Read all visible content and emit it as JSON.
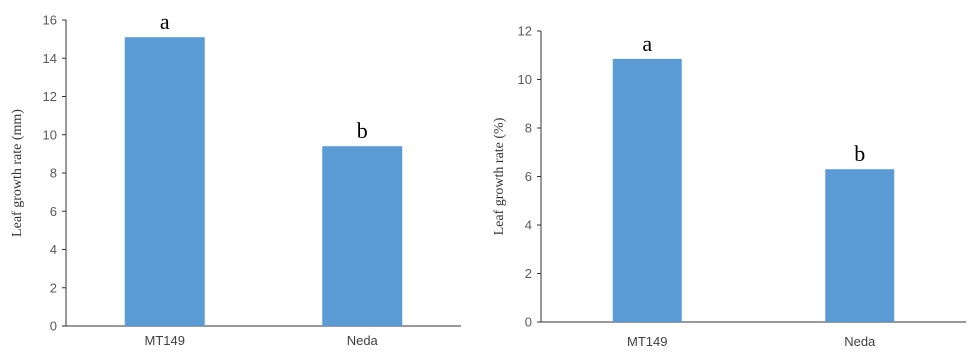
{
  "chart_data": [
    {
      "type": "bar",
      "categories": [
        "MT149",
        "Neda"
      ],
      "values": [
        15.1,
        9.4
      ],
      "annotations": [
        "a",
        "b"
      ],
      "xlabel": "",
      "ylabel": "Leaf growth rate (mm)",
      "ylim": [
        0,
        16
      ],
      "yticks": [
        0,
        2,
        4,
        6,
        8,
        10,
        12,
        14,
        16
      ],
      "grid": false,
      "legend": "none",
      "bar_color": "#5B9BD5"
    },
    {
      "type": "bar",
      "categories": [
        "MT149",
        "Neda"
      ],
      "values": [
        10.85,
        6.3
      ],
      "annotations": [
        "a",
        "b"
      ],
      "xlabel": "",
      "ylabel": "Leaf growth rate (%)",
      "ylim": [
        0,
        12
      ],
      "yticks": [
        0,
        2,
        4,
        6,
        8,
        10,
        12
      ],
      "grid": false,
      "legend": "none",
      "bar_color": "#5B9BD5"
    }
  ]
}
